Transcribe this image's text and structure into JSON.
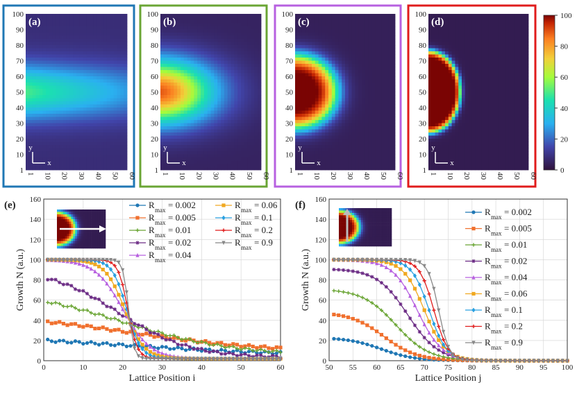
{
  "colors": {
    "a": "#1f77b4",
    "b": "#6aa534",
    "c": "#b760e0",
    "d": "#e01c1c"
  },
  "heatmaps": {
    "panels": [
      {
        "label": "(a)",
        "peak": 42,
        "spread": 0.55,
        "color": "#1f77b4"
      },
      {
        "label": "(b)",
        "peak": 72,
        "spread": 0.7,
        "color": "#6aa534"
      },
      {
        "label": "(c)",
        "peak": 100,
        "spread": 0.75,
        "color": "#b760e0"
      },
      {
        "label": "(d)",
        "peak": 100,
        "spread": 0.8,
        "color": "#e01c1c"
      }
    ],
    "yticks": [
      "100",
      "90",
      "80",
      "70",
      "60",
      "50",
      "40",
      "30",
      "20",
      "10",
      "1"
    ],
    "xticks": [
      "1",
      "10",
      "20",
      "30",
      "40",
      "50",
      "60"
    ],
    "axis_y": "y",
    "axis_x": "x",
    "colorbar": {
      "ticks": [
        "100",
        "80",
        "60",
        "40",
        "20",
        "0"
      ]
    }
  },
  "chart_data": [
    {
      "type": "line",
      "panel": "(e)",
      "title": "",
      "xlabel": "Lattice Position i",
      "ylabel": "Growth N (a.u.)",
      "xlim": [
        0,
        60
      ],
      "ylim": [
        0,
        160
      ],
      "xticks": [
        "0",
        "10",
        "20",
        "30",
        "40",
        "50",
        "60"
      ],
      "yticks": [
        "0",
        "20",
        "40",
        "60",
        "80",
        "100",
        "120",
        "140",
        "160"
      ],
      "legend_prefix": "R",
      "legend_sub": "max",
      "series": [
        {
          "name": "= 0.002",
          "color": "#1f77b4",
          "marker": "o",
          "kind": "lin",
          "y0": 25,
          "y1": 5,
          "c": 22,
          "w": 20
        },
        {
          "name": "= 0.005",
          "color": "#f0702e",
          "marker": "s",
          "kind": "lin",
          "y0": 48,
          "y1": 8,
          "c": 22,
          "w": 18
        },
        {
          "name": "= 0.01",
          "color": "#6aa534",
          "marker": "+",
          "kind": "lin",
          "y0": 72,
          "y1": 5,
          "c": 20,
          "w": 14
        },
        {
          "name": "= 0.02",
          "color": "#6b2b84",
          "marker": "*",
          "kind": "lin",
          "y0": 92,
          "y1": 3,
          "c": 19,
          "w": 9
        },
        {
          "name": "= 0.04",
          "color": "#b760e0",
          "marker": "^",
          "kind": "sig",
          "c": 20,
          "w": 3.5
        },
        {
          "name": "= 0.06",
          "color": "#f0a820",
          "marker": "s",
          "kind": "sig",
          "c": 20.5,
          "w": 2.5
        },
        {
          "name": "= 0.1",
          "color": "#2aa0e0",
          "marker": "d",
          "kind": "sig",
          "c": 21,
          "w": 1.8
        },
        {
          "name": "= 0.2",
          "color": "#e01c1c",
          "marker": "+",
          "kind": "sig",
          "c": 21.3,
          "w": 1.2
        },
        {
          "name": "= 0.9",
          "color": "#888888",
          "marker": "v",
          "kind": "sig",
          "c": 21.5,
          "w": 0.7
        }
      ]
    },
    {
      "type": "line",
      "panel": "(f)",
      "title": "",
      "xlabel": "Lattice Position j",
      "ylabel": "Growth N (a.u.)",
      "xlim": [
        50,
        100
      ],
      "ylim": [
        0,
        160
      ],
      "xticks": [
        "50",
        "55",
        "60",
        "65",
        "70",
        "75",
        "80",
        "85",
        "90",
        "95",
        "100"
      ],
      "yticks": [
        "0",
        "20",
        "40",
        "60",
        "80",
        "100",
        "120",
        "140",
        "160"
      ],
      "legend_prefix": "R",
      "legend_sub": "max",
      "series": [
        {
          "name": "= 0.002",
          "color": "#1f77b4",
          "marker": "o",
          "kind": "sig2",
          "top": 23,
          "c": 61,
          "w": 3.5
        },
        {
          "name": "= 0.005",
          "color": "#f0702e",
          "marker": "s",
          "kind": "sig2",
          "top": 48,
          "c": 61.5,
          "w": 3.5
        },
        {
          "name": "= 0.01",
          "color": "#6aa534",
          "marker": "+",
          "kind": "sig2",
          "top": 71,
          "c": 64,
          "w": 3.5
        },
        {
          "name": "= 0.02",
          "color": "#6b2b84",
          "marker": "*",
          "kind": "sig2",
          "top": 91,
          "c": 66.5,
          "w": 3.2
        },
        {
          "name": "= 0.04",
          "color": "#b760e0",
          "marker": "^",
          "kind": "sig2",
          "top": 100,
          "c": 68.5,
          "w": 2.6
        },
        {
          "name": "= 0.06",
          "color": "#f0a820",
          "marker": "s",
          "kind": "sig2",
          "top": 100,
          "c": 70,
          "w": 2.2
        },
        {
          "name": "= 0.1",
          "color": "#2aa0e0",
          "marker": "d",
          "kind": "sig2",
          "top": 100,
          "c": 71,
          "w": 1.8
        },
        {
          "name": "= 0.2",
          "color": "#e01c1c",
          "marker": "+",
          "kind": "sig2",
          "top": 100,
          "c": 72,
          "w": 1.5
        },
        {
          "name": "= 0.9",
          "color": "#888888",
          "marker": "v",
          "kind": "sig2",
          "top": 100,
          "c": 73,
          "w": 1.1
        }
      ]
    }
  ],
  "panel_labels": {
    "e": "(e)",
    "f": "(f)"
  }
}
